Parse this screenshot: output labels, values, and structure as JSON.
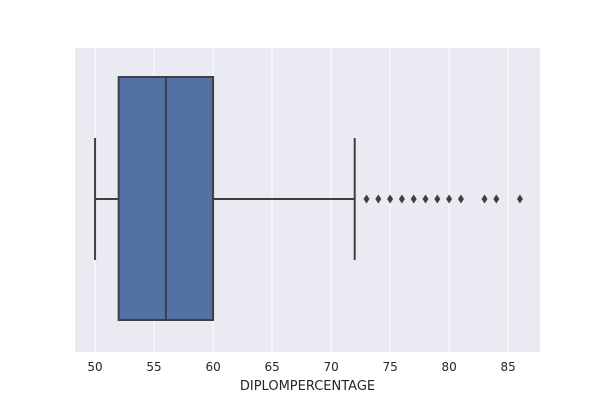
{
  "chart_data": {
    "type": "boxplot",
    "orientation": "horizontal",
    "title": "",
    "xlabel": "DIPLOMPERCENTAGE",
    "ylabel": "",
    "xlim": [
      48.3,
      87.7
    ],
    "xticks": [
      50,
      55,
      60,
      65,
      70,
      75,
      80,
      85
    ],
    "grid": true,
    "colors": {
      "background": "#eaeaf2",
      "grid": "#ffffff",
      "box_fill": "#5471a5",
      "box_edge": "#3f3f3f"
    },
    "box": {
      "min": 50,
      "q1": 52,
      "median": 56,
      "q3": 60,
      "max": 72
    },
    "outliers": [
      73,
      74,
      75,
      76,
      77,
      78,
      79,
      80,
      81,
      83,
      84,
      86
    ]
  }
}
